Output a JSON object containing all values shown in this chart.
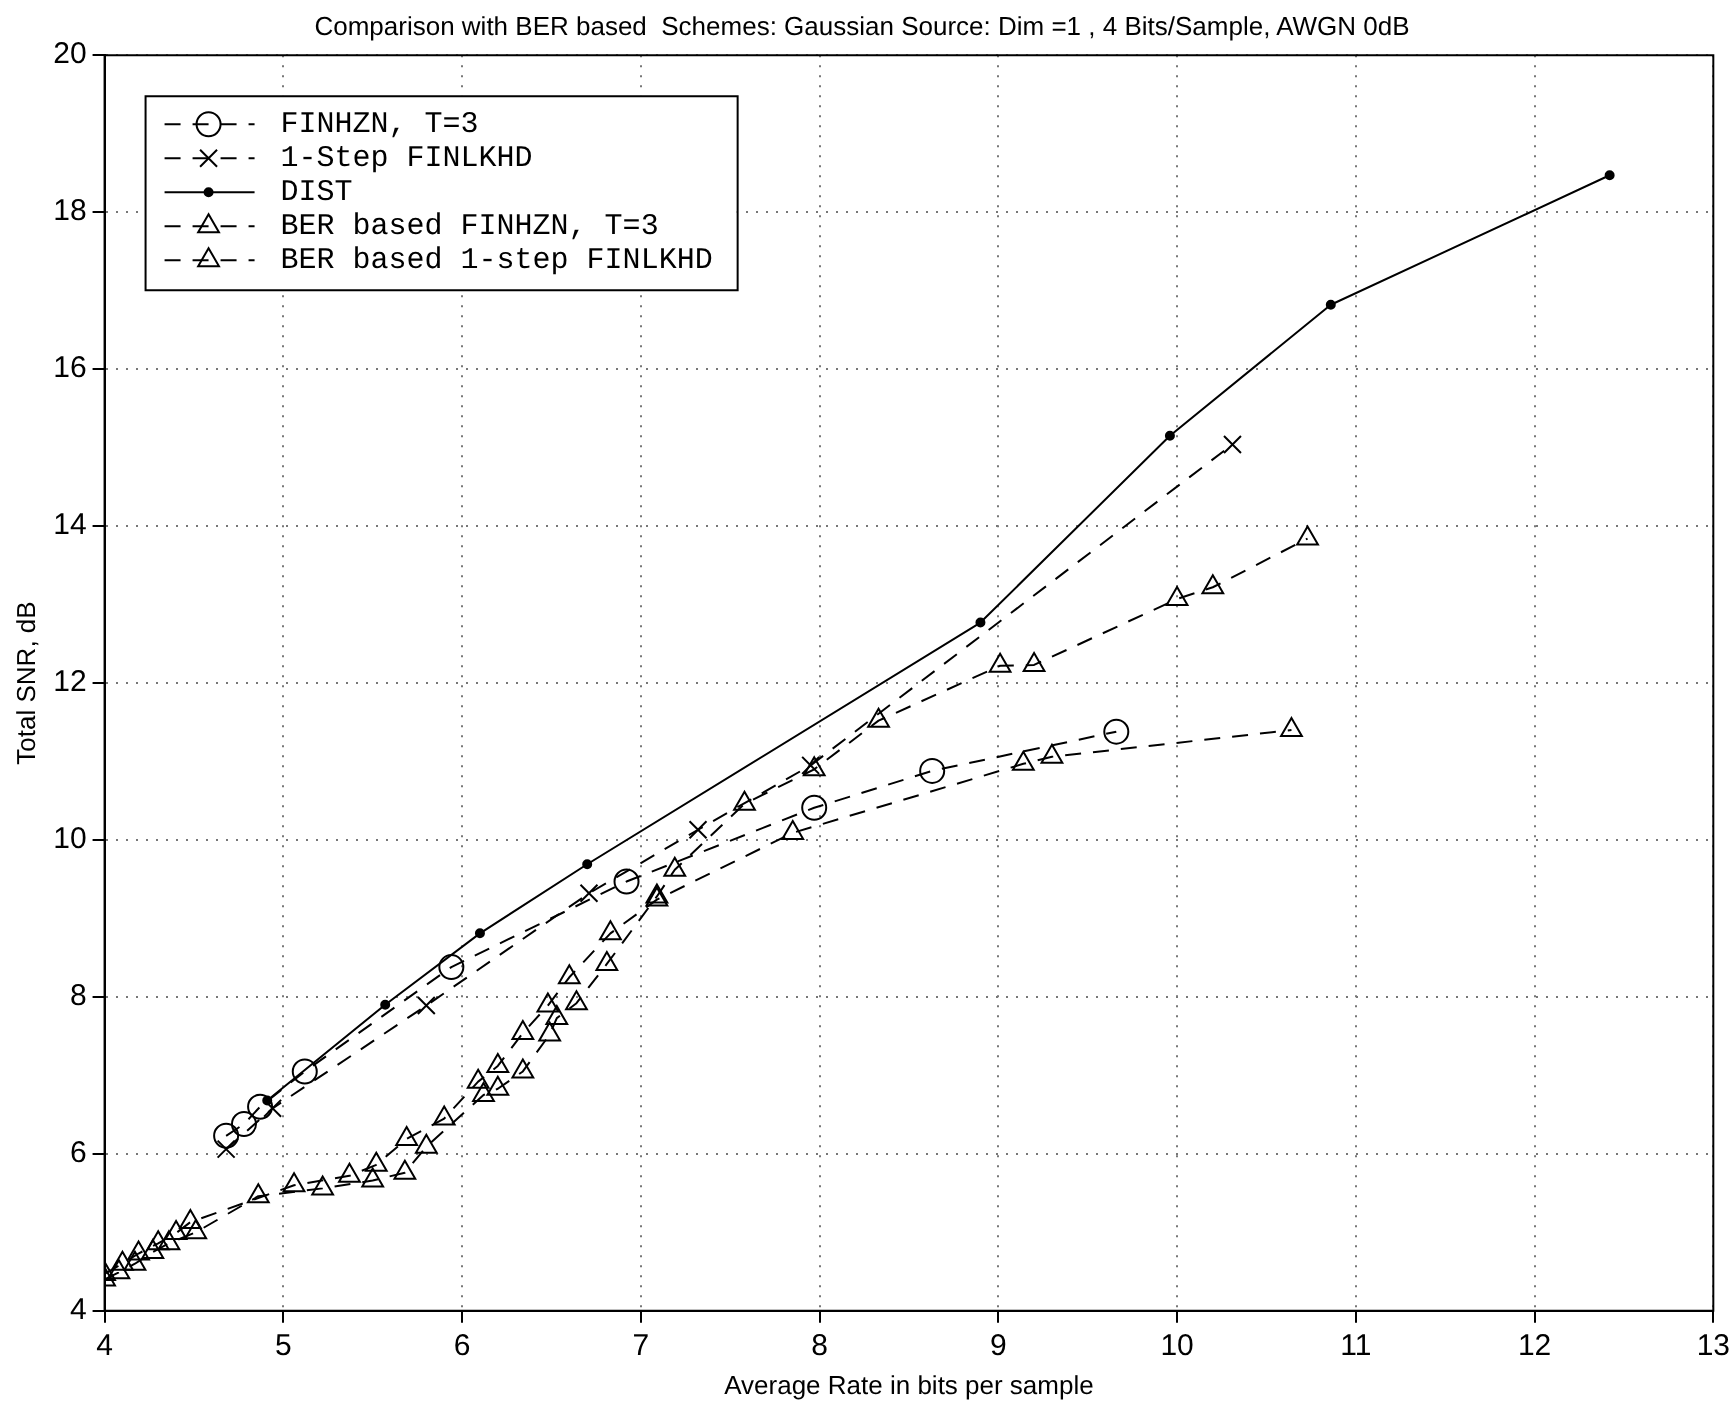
{
  "chart_data": {
    "type": "line",
    "title": "Comparison with BER based  Schemes: Gaussian Source: Dim =1 , 4 Bits/Sample, AWGN 0dB",
    "xlabel": "Average Rate in bits per sample",
    "ylabel": "Total SNR, dB",
    "xlim": [
      4,
      13
    ],
    "xticks": [
      4,
      5,
      6,
      7,
      8,
      9,
      10,
      11,
      12,
      13
    ],
    "ylim": [
      4,
      20
    ],
    "yticks": [
      4,
      6,
      8,
      10,
      12,
      14,
      16,
      18,
      20
    ],
    "grid": true,
    "legend": "top left",
    "line_style": "dashed",
    "series": [
      {
        "name": "FINHZN, T=3",
        "color": "#000000",
        "marker": "circle",
        "x": [
          4.68,
          4.78,
          4.87,
          5.12,
          5.94,
          6.92,
          7.97,
          8.63,
          9.66
        ],
        "values": [
          6.23,
          6.38,
          6.6,
          7.05,
          8.38,
          9.47,
          10.41,
          10.88,
          11.38
        ]
      },
      {
        "name": "1-Step FINLKHD",
        "color": "#000000",
        "marker": "cross",
        "x": [
          4.68,
          4.94,
          5.8,
          6.71,
          7.32,
          7.95,
          10.31
        ],
        "values": [
          6.06,
          6.58,
          7.89,
          9.32,
          10.13,
          10.95,
          15.04
        ]
      },
      {
        "name": "DIST",
        "color": "#000000",
        "marker": "circle",
        "line_style": "solid",
        "x": [
          4.91,
          5.57,
          6.1,
          6.7,
          8.9,
          9.96,
          10.86,
          12.42
        ],
        "values": [
          6.68,
          7.9,
          8.81,
          9.69,
          12.77,
          15.15,
          16.82,
          18.47
        ]
      },
      {
        "name": "BER based FINHZN, T=3",
        "color": "#000000",
        "marker": "triangle",
        "x": [
          4.0,
          4.1,
          4.19,
          4.3,
          4.4,
          4.48,
          5.06,
          5.37,
          5.52,
          5.69,
          5.9,
          6.09,
          6.2,
          6.34,
          6.48,
          6.6,
          6.83,
          7.09,
          7.85,
          9.14,
          9.3,
          10.64
        ],
        "values": [
          4.47,
          4.6,
          4.73,
          4.86,
          4.99,
          5.13,
          5.6,
          5.72,
          5.86,
          6.19,
          6.45,
          6.92,
          7.12,
          7.54,
          7.89,
          8.25,
          8.81,
          9.24,
          10.09,
          10.97,
          11.06,
          11.4
        ]
      },
      {
        "name": "BER based 1-step FINLKHD",
        "color": "#000000",
        "marker": "triangle",
        "x": [
          4.0,
          4.08,
          4.17,
          4.27,
          4.36,
          4.51,
          4.86,
          5.22,
          5.5,
          5.68,
          5.8,
          6.12,
          6.2,
          6.34,
          6.49,
          6.53,
          6.64,
          6.81,
          7.09,
          7.19,
          7.58,
          7.97,
          8.33,
          9.01,
          9.2,
          10.0,
          10.2,
          10.73
        ],
        "values": [
          4.4,
          4.49,
          4.6,
          4.75,
          4.86,
          5.0,
          5.46,
          5.56,
          5.66,
          5.76,
          6.09,
          6.75,
          6.83,
          7.05,
          7.52,
          7.73,
          7.92,
          8.42,
          9.28,
          9.62,
          10.46,
          10.9,
          11.52,
          12.22,
          12.23,
          13.07,
          13.22,
          13.84
        ]
      }
    ]
  }
}
